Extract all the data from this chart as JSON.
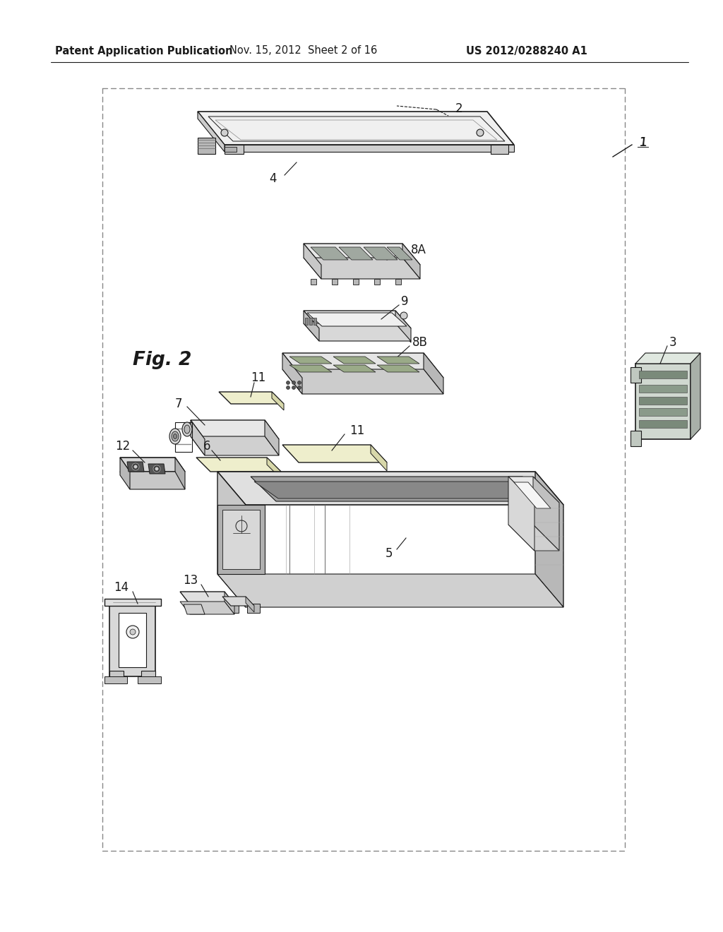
{
  "bg_color": "#ffffff",
  "header_left": "Patent Application Publication",
  "header_center": "Nov. 15, 2012  Sheet 2 of 16",
  "header_right": "US 2012/0288240 A1",
  "line_color": "#1a1a1a",
  "gray_light": "#e0e0e0",
  "gray_mid": "#c0c0c0",
  "gray_dark": "#909090",
  "header_font_size": 10.5,
  "label_font_size": 12,
  "fig_label_font_size": 19
}
